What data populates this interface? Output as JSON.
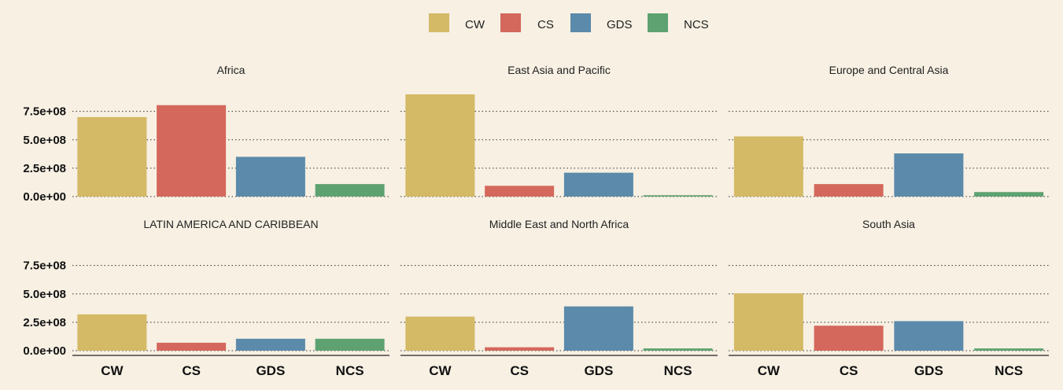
{
  "chart_data": {
    "type": "bar",
    "categories": [
      "CW",
      "CS",
      "GDS",
      "NCS"
    ],
    "legend": {
      "position": "top",
      "entries": [
        {
          "name": "CW",
          "color": "#d4b966"
        },
        {
          "name": "CS",
          "color": "#d4685c"
        },
        {
          "name": "GDS",
          "color": "#5b8aaa"
        },
        {
          "name": "NCS",
          "color": "#5fa272"
        }
      ]
    },
    "ylim": [
      0,
      900000000
    ],
    "yticks": [
      0,
      250000000,
      500000000,
      750000000
    ],
    "ytick_labels": [
      "0.0e+00",
      "2.5e+08",
      "5.0e+08",
      "7.5e+08"
    ],
    "grid": "dotted horizontal",
    "panels": [
      {
        "title": "Africa",
        "values": [
          700000000,
          805000000,
          350000000,
          110000000
        ]
      },
      {
        "title": "East Asia and Pacific",
        "values": [
          900000000,
          95000000,
          210000000,
          12000000
        ]
      },
      {
        "title": "Europe and Central Asia",
        "values": [
          530000000,
          110000000,
          380000000,
          40000000
        ]
      },
      {
        "title": "LATIN AMERICA AND CARIBBEAN",
        "values": [
          320000000,
          70000000,
          105000000,
          105000000
        ]
      },
      {
        "title": "Middle East and North Africa",
        "values": [
          300000000,
          30000000,
          390000000,
          20000000
        ]
      },
      {
        "title": "South Asia",
        "values": [
          505000000,
          220000000,
          260000000,
          20000000
        ]
      }
    ]
  }
}
